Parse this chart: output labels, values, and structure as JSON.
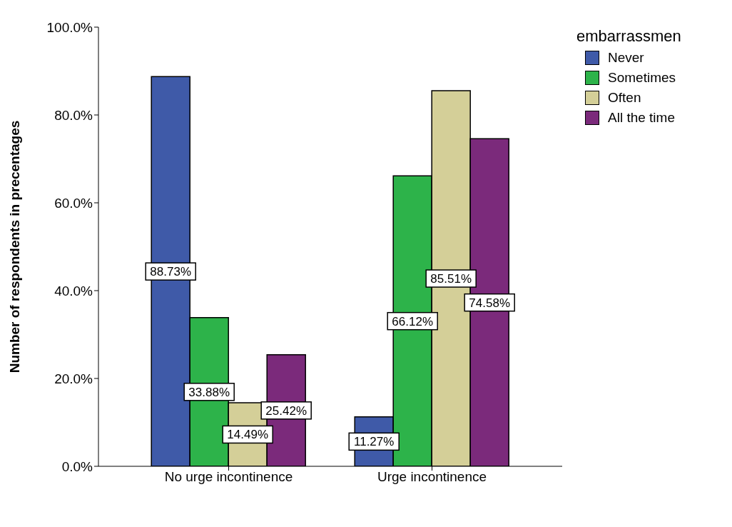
{
  "chart_data": {
    "type": "bar",
    "ylabel": "Number of respondents in precentages",
    "legend_title": "embarrassmen",
    "legend": "top right",
    "grid": false,
    "categories": [
      "No urge incontinence",
      "Urge incontinence"
    ],
    "ylim": [
      0,
      100
    ],
    "yticks": [
      {
        "value": 0,
        "label": "0.0%"
      },
      {
        "value": 20,
        "label": "20.0%"
      },
      {
        "value": 40,
        "label": "40.0%"
      },
      {
        "value": 60,
        "label": "60.0%"
      },
      {
        "value": 80,
        "label": "80.0%"
      },
      {
        "value": 100,
        "label": "100.0%"
      }
    ],
    "series": [
      {
        "name": "Never",
        "color": "#3f5aa8",
        "values": [
          88.73,
          11.27
        ],
        "value_labels": [
          "88.73%",
          "11.27%"
        ]
      },
      {
        "name": "Sometimes",
        "color": "#2db34a",
        "values": [
          33.88,
          66.12
        ],
        "value_labels": [
          "33.88%",
          "66.12%"
        ]
      },
      {
        "name": "Often",
        "color": "#d4cf98",
        "values": [
          14.49,
          85.51
        ],
        "value_labels": [
          "14.49%",
          "85.51%"
        ]
      },
      {
        "name": "All the time",
        "color": "#7b2a7b",
        "values": [
          25.42,
          74.58
        ],
        "value_labels": [
          "25.42%",
          "74.58%"
        ]
      }
    ]
  }
}
